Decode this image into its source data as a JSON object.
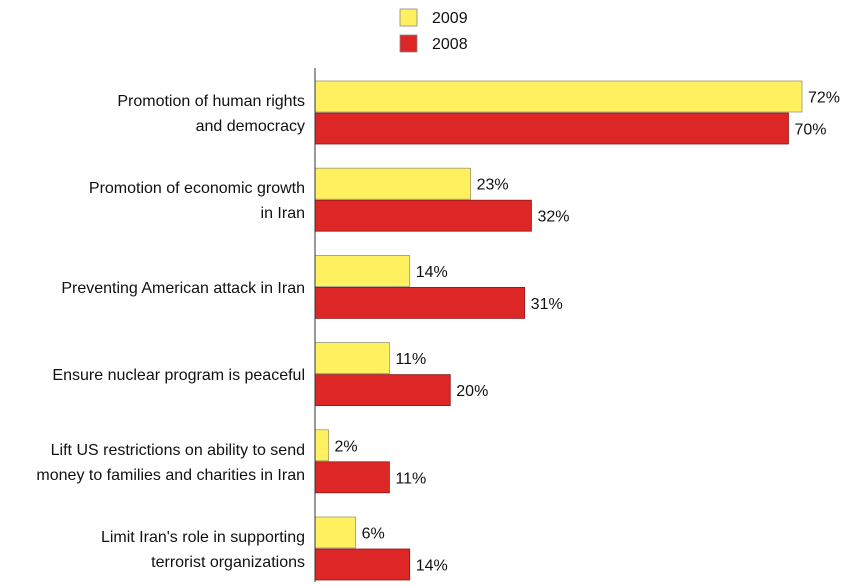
{
  "chart_data": {
    "type": "bar",
    "orientation": "horizontal",
    "categories": [
      [
        "Promotion of human rights",
        "and democracy"
      ],
      [
        "Promotion of economic growth",
        "in Iran"
      ],
      [
        "Preventing American attack in Iran"
      ],
      [
        "Ensure nuclear program is peaceful"
      ],
      [
        "Lift US restrictions on ability to send",
        "money to families and charities in Iran"
      ],
      [
        "Limit Iran's role in supporting",
        "terrorist organizations"
      ]
    ],
    "series": [
      {
        "name": "2009",
        "color": "#fff060",
        "values": [
          72,
          23,
          14,
          11,
          2,
          6
        ]
      },
      {
        "name": "2008",
        "color": "#dd2626",
        "values": [
          70,
          32,
          31,
          20,
          11,
          14
        ]
      }
    ],
    "value_suffix": "%",
    "xlim": [
      0,
      72
    ],
    "legend_position": "top",
    "grid": false
  }
}
